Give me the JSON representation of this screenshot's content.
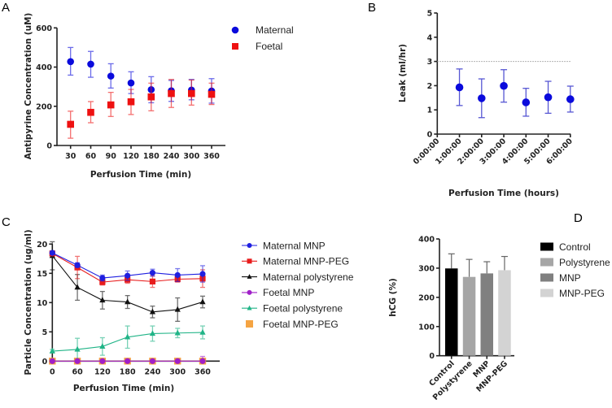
{
  "panels": {
    "A": "A",
    "B": "B",
    "C": "C",
    "D": "D"
  },
  "chart_data": [
    {
      "id": "A",
      "type": "scatter",
      "title": "",
      "xlabel": "Perfusion Time (min)",
      "ylabel": "Antipyrine Concentration (uM)",
      "categories": [
        "30",
        "60",
        "90",
        "120",
        "180",
        "240",
        "300",
        "360"
      ],
      "ylim": [
        0,
        600
      ],
      "yticks": [
        0,
        200,
        400,
        600
      ],
      "legend_position": "top-right",
      "series": [
        {
          "name": "Maternal",
          "color": "#0a0adc",
          "marker": "circle",
          "values": [
            428,
            415,
            354,
            319,
            285,
            279,
            283,
            278
          ],
          "err_upper": [
            500,
            480,
            417,
            376,
            351,
            332,
            337,
            341
          ],
          "err_lower": [
            359,
            348,
            293,
            265,
            218,
            225,
            233,
            216
          ]
        },
        {
          "name": "Foetal",
          "color": "#ee1111",
          "marker": "square",
          "values": [
            108,
            169,
            207,
            223,
            248,
            265,
            265,
            261
          ],
          "err_upper": [
            175,
            224,
            271,
            286,
            318,
            337,
            334,
            318
          ],
          "err_lower": [
            37,
            116,
            148,
            158,
            177,
            194,
            206,
            209
          ]
        }
      ]
    },
    {
      "id": "B",
      "type": "scatter",
      "title": "",
      "xlabel": "Perfusion Time (hours)",
      "ylabel": "Leak (ml/hr)",
      "categories": [
        "0:00:00",
        "1:00:00",
        "2:00:00",
        "3:00:00",
        "4:00:00",
        "5:00:00",
        "6:00:00"
      ],
      "ylim": [
        0,
        5
      ],
      "yticks": [
        0,
        1,
        2,
        3,
        4,
        5
      ],
      "reference_line": 3,
      "series": [
        {
          "name": "Leak",
          "color": "#0a0adc",
          "marker": "circle",
          "x_index": [
            1,
            2,
            3,
            4,
            5,
            6
          ],
          "values": [
            1.93,
            1.48,
            1.99,
            1.31,
            1.52,
            1.44
          ],
          "err_upper": [
            2.69,
            2.28,
            2.66,
            1.89,
            2.18,
            1.98
          ],
          "err_lower": [
            1.18,
            0.68,
            1.32,
            0.74,
            0.86,
            0.91
          ]
        }
      ]
    },
    {
      "id": "C",
      "type": "line",
      "title": "",
      "xlabel": "Perfusion Time (min)",
      "ylabel": "Particle Concentration (ug/ml)",
      "x": [
        0,
        60,
        120,
        180,
        240,
        300,
        360
      ],
      "xlim": [
        0,
        400
      ],
      "ylim": [
        0,
        20
      ],
      "yticks": [
        0,
        5,
        10,
        15,
        20
      ],
      "legend_position": "right",
      "series": [
        {
          "name": "Maternal MNP",
          "color": "#1f1fe0",
          "marker": "circle",
          "values": [
            18.5,
            16.4,
            14.2,
            14.6,
            15.1,
            14.7,
            14.9
          ],
          "err": [
            0.3,
            0.4,
            0.5,
            0.8,
            0.6,
            1.1,
            1.4
          ]
        },
        {
          "name": "Maternal MNP-PEG",
          "color": "#e81c1c",
          "marker": "square",
          "values": [
            18.4,
            16.0,
            13.5,
            13.9,
            13.6,
            14.0,
            14.1
          ],
          "err": [
            0.3,
            1.9,
            0.5,
            0.6,
            1.0,
            0.5,
            1.5
          ]
        },
        {
          "name": "Maternal polystyrene",
          "color": "#111111",
          "marker": "triangle",
          "values": [
            18.0,
            12.6,
            10.4,
            10.1,
            8.4,
            8.8,
            10.1
          ],
          "err": [
            2.4,
            2.2,
            1.5,
            1.1,
            1.0,
            2.0,
            1.0
          ]
        },
        {
          "name": "Foetal MNP",
          "color": "#a020c8",
          "marker": "circle",
          "values": [
            0,
            0,
            0,
            0,
            0,
            0,
            0
          ],
          "err": [
            0.1,
            0.1,
            0.1,
            0.1,
            0.1,
            0.1,
            0.8
          ]
        },
        {
          "name": "Foetal polystyrene",
          "color": "#20b487",
          "marker": "triangle",
          "values": [
            1.7,
            2.0,
            2.5,
            4.1,
            4.7,
            4.8,
            4.9
          ],
          "err": [
            0.3,
            1.9,
            1.5,
            1.9,
            1.3,
            0.8,
            1.1
          ]
        },
        {
          "name": "Foetal MNP-PEG",
          "color": "#f5a442",
          "marker": "square",
          "values": [
            0,
            0,
            0,
            0,
            0,
            0,
            0
          ],
          "err": [
            0.1,
            0.1,
            0.1,
            0.1,
            0.1,
            0.1,
            0.1
          ]
        }
      ]
    },
    {
      "id": "D",
      "type": "bar",
      "title": "",
      "xlabel": "",
      "ylabel": "hCG (%)",
      "categories": [
        "Control",
        "Polystyrene",
        "MNP",
        "MNP-PEG"
      ],
      "values": [
        299,
        270,
        282,
        293
      ],
      "err_upper": [
        349,
        330,
        322,
        340
      ],
      "colors": [
        "#000000",
        "#a6a6a6",
        "#808080",
        "#d3d3d3"
      ],
      "ylim": [
        0,
        400
      ],
      "yticks": [
        0,
        100,
        200,
        300,
        400
      ],
      "legend_position": "right"
    }
  ]
}
